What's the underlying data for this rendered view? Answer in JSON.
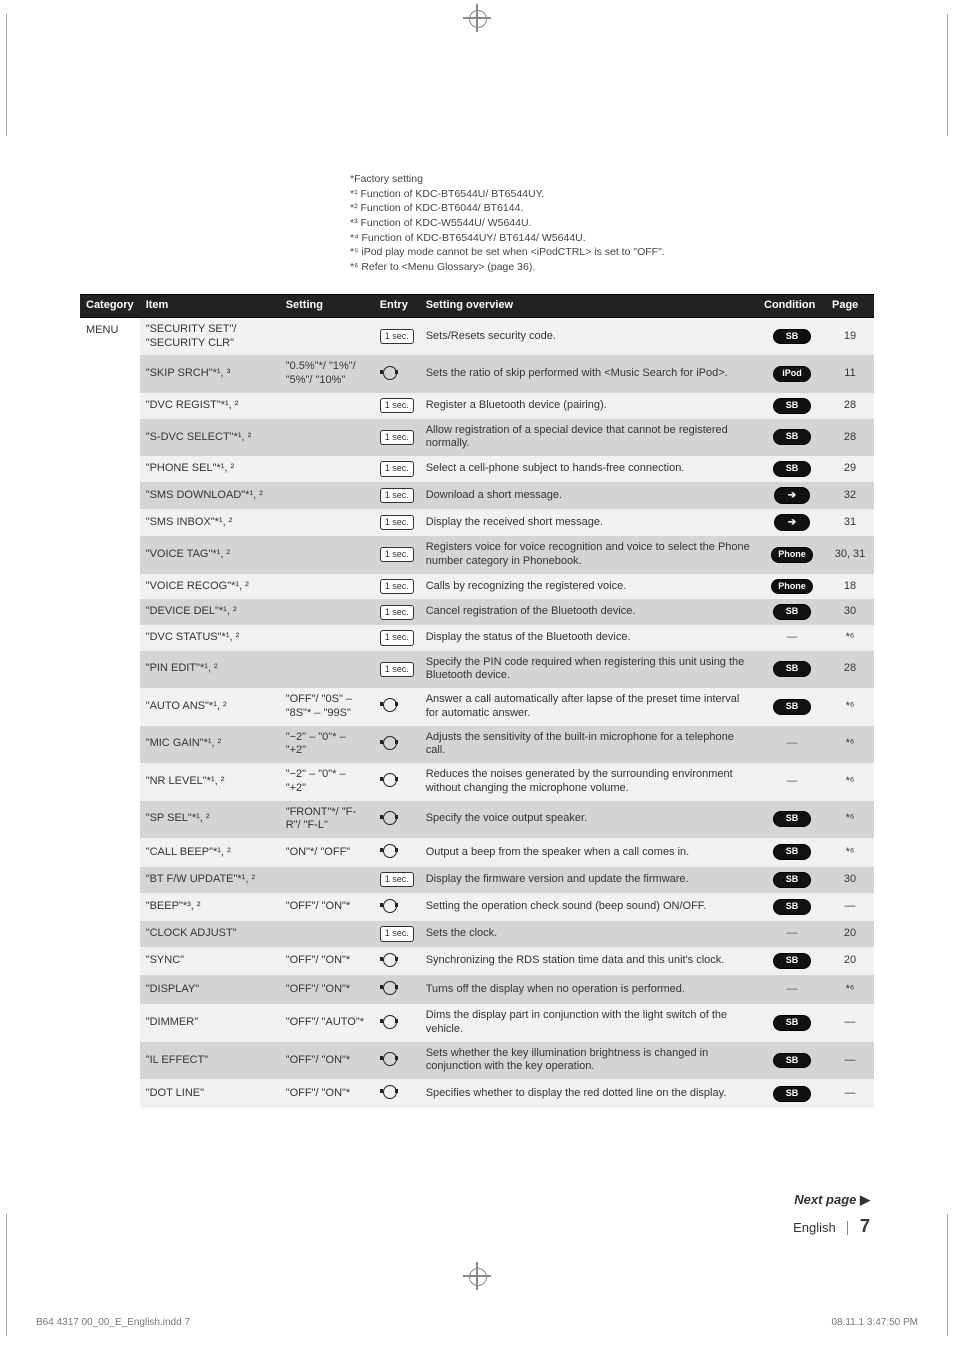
{
  "notes": [
    "*Factory setting",
    "*¹ Function of KDC-BT6544U/ BT6544UY.",
    "*² Function of KDC-BT6044/ BT6144.",
    "*³ Function of KDC-W5544U/ W5644U.",
    "*⁴ Function of KDC-BT6544UY/ BT6144/ W5644U.",
    "*⁵ iPod play mode cannot be set when <iPodCTRL> is set to \"OFF\".",
    "*⁶ Refer to <Menu Glossary> (page 36)."
  ],
  "headers": {
    "category": "Category",
    "item": "Item",
    "setting": "Setting",
    "entry": "Entry",
    "overview": "Setting overview",
    "condition": "Condition",
    "page": "Page"
  },
  "category_label": "MENU",
  "rows": [
    {
      "item": "\"SECURITY SET\"/ \"SECURITY CLR\"",
      "setting": "",
      "entry": "1sec",
      "overview": "Sets/Resets security code.",
      "cond": "SB",
      "page": "19",
      "shade": "a"
    },
    {
      "item": "\"SKIP SRCH\"*¹, ³",
      "setting": "\"0.5%\"*/ \"1%\"/ \"5%\"/ \"10%\"",
      "entry": "knob",
      "overview": "Sets the ratio of skip performed with <Music Search for iPod>.",
      "cond": "iPod",
      "page": "11",
      "shade": "b"
    },
    {
      "item": "\"DVC REGIST\"*¹, ²",
      "setting": "",
      "entry": "1sec",
      "overview": "Register a Bluetooth device (pairing).",
      "cond": "SB",
      "page": "28",
      "shade": "a"
    },
    {
      "item": "\"S-DVC SELECT\"*¹, ²",
      "setting": "",
      "entry": "1sec",
      "overview": "Allow registration of a special device that cannot be registered normally.",
      "cond": "SB",
      "page": "28",
      "shade": "b"
    },
    {
      "item": "\"PHONE SEL\"*¹, ²",
      "setting": "",
      "entry": "1sec",
      "overview": "Select a cell-phone subject to hands-free connection.",
      "cond": "SB",
      "page": "29",
      "shade": "a"
    },
    {
      "item": "\"SMS DOWNLOAD\"*¹, ²",
      "setting": "",
      "entry": "1sec",
      "overview": "Download a short message.",
      "cond": "arrow",
      "page": "32",
      "shade": "b"
    },
    {
      "item": "\"SMS INBOX\"*¹, ²",
      "setting": "",
      "entry": "1sec",
      "overview": "Display the received short message.",
      "cond": "arrow",
      "page": "31",
      "shade": "a"
    },
    {
      "item": "\"VOICE TAG\"*¹, ²",
      "setting": "",
      "entry": "1sec",
      "overview": "Registers voice for voice recognition and voice to select the Phone number category in Phonebook.",
      "cond": "Phone",
      "page": "30, 31",
      "shade": "b"
    },
    {
      "item": "\"VOICE RECOG\"*¹, ²",
      "setting": "",
      "entry": "1sec",
      "overview": "Calls by recognizing the registered voice.",
      "cond": "Phone",
      "page": "18",
      "shade": "a"
    },
    {
      "item": "\"DEVICE DEL\"*¹, ²",
      "setting": "",
      "entry": "1sec",
      "overview": "Cancel registration of the Bluetooth device.",
      "cond": "SB",
      "page": "30",
      "shade": "b"
    },
    {
      "item": "\"DVC STATUS\"*¹, ²",
      "setting": "",
      "entry": "1sec",
      "overview": "Display the status of the Bluetooth device.",
      "cond": "dash",
      "page": "*⁶",
      "shade": "a"
    },
    {
      "item": "\"PIN EDIT\"*¹, ²",
      "setting": "",
      "entry": "1sec",
      "overview": "Specify the PIN code required when registering this unit using the Bluetooth device.",
      "cond": "SB",
      "page": "28",
      "shade": "b"
    },
    {
      "item": "\"AUTO ANS\"*¹, ²",
      "setting": "\"OFF\"/ \"0S\" – \"8S\"* – \"99S\"",
      "entry": "knob",
      "overview": "Answer a call automatically after lapse of the preset time interval for automatic answer.",
      "cond": "SB",
      "page": "*⁶",
      "shade": "a"
    },
    {
      "item": "\"MIC GAIN\"*¹, ²",
      "setting": "\"−2\" – \"0\"* – \"+2\"",
      "entry": "knob",
      "overview": "Adjusts the sensitivity of the built-in microphone for a telephone call.",
      "cond": "dash",
      "page": "*⁶",
      "shade": "b"
    },
    {
      "item": "\"NR LEVEL\"*¹, ²",
      "setting": "\"−2\" – \"0\"* – \"+2\"",
      "entry": "knob",
      "overview": "Reduces the noises generated by the surrounding environment without changing the microphone volume.",
      "cond": "dash",
      "page": "*⁶",
      "shade": "a"
    },
    {
      "item": "\"SP SEL\"*¹, ²",
      "setting": "\"FRONT\"*/ \"F-R\"/ \"F-L\"",
      "entry": "knob",
      "overview": "Specify the voice output speaker.",
      "cond": "SB",
      "page": "*⁶",
      "shade": "b"
    },
    {
      "item": "\"CALL BEEP\"*¹, ²",
      "setting": "\"ON\"*/ \"OFF\"",
      "entry": "knob",
      "overview": "Output a beep from the speaker when a call comes in.",
      "cond": "SB",
      "page": "*⁶",
      "shade": "a"
    },
    {
      "item": "\"BT F/W UPDATE\"*¹, ²",
      "setting": "",
      "entry": "1sec",
      "overview": "Display the firmware version and update the firmware.",
      "cond": "SB",
      "page": "30",
      "shade": "b"
    },
    {
      "item": "\"BEEP\"*³, ²",
      "setting": "\"OFF\"/ \"ON\"*",
      "entry": "knob",
      "overview": "Setting the operation check sound (beep sound) ON/OFF.",
      "cond": "SB",
      "page": "—",
      "shade": "a"
    },
    {
      "item": "\"CLOCK ADJUST\"",
      "setting": "",
      "entry": "1sec",
      "overview": "Sets the clock.",
      "cond": "dash",
      "page": "20",
      "shade": "b"
    },
    {
      "item": "\"SYNC\"",
      "setting": "\"OFF\"/ \"ON\"*",
      "entry": "knob",
      "overview": "Synchronizing the RDS station time data and this unit's clock.",
      "cond": "SB",
      "page": "20",
      "shade": "a"
    },
    {
      "item": "\"DISPLAY\"",
      "setting": "\"OFF\"/ \"ON\"*",
      "entry": "knob",
      "overview": "Turns off the display when no operation is performed.",
      "cond": "dash",
      "page": "*⁶",
      "shade": "b"
    },
    {
      "item": "\"DIMMER\"",
      "setting": "\"OFF\"/ \"AUTO\"*",
      "entry": "knob",
      "overview": "Dims the display part in conjunction with the light switch of the vehicle.",
      "cond": "SB",
      "page": "—",
      "shade": "a"
    },
    {
      "item": "\"IL EFFECT\"",
      "setting": "\"OFF\"/ \"ON\"*",
      "entry": "knob",
      "overview": "Sets whether the key illumination brightness is changed in conjunction with the key operation.",
      "cond": "SB",
      "page": "—",
      "shade": "b"
    },
    {
      "item": "\"DOT LINE\"",
      "setting": "\"OFF\"/ \"ON\"*",
      "entry": "knob",
      "overview": "Specifies whether to display the red dotted line on the display.",
      "cond": "SB",
      "page": "—",
      "shade": "a"
    }
  ],
  "nextpage": "Next page",
  "lang": "English",
  "pagenum": "7",
  "printfoot_left": "B64 4317 00_00_E_English.indd   7",
  "printfoot_right": "08.11.1   3:47:50 PM",
  "entry_labels": {
    "1sec": "1 sec."
  }
}
